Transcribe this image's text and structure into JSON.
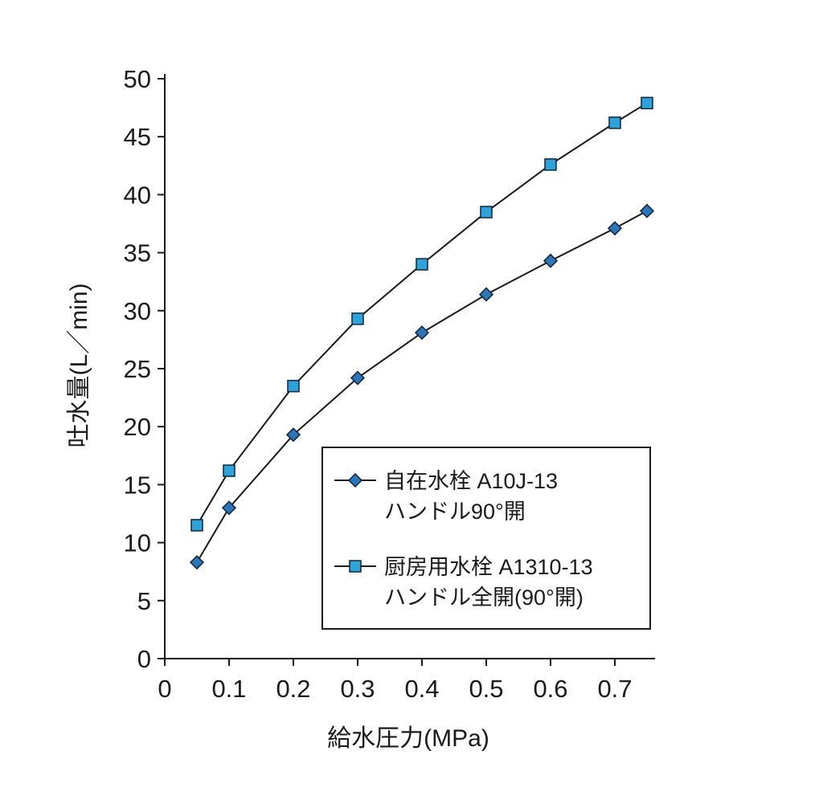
{
  "chart_data": {
    "type": "line",
    "title": "",
    "xlabel": "給水圧力(MPa)",
    "ylabel": "吐水量(L／min)",
    "xlim": [
      0,
      0.7625
    ],
    "ylim": [
      0,
      50
    ],
    "x_ticks": [
      0,
      0.1,
      0.2,
      0.3,
      0.4,
      0.5,
      0.6,
      0.7
    ],
    "x_tick_labels": [
      "0",
      "0.1",
      "0.2",
      "0.3",
      "0.4",
      "0.5",
      "0.6",
      "0.7"
    ],
    "y_ticks": [
      0,
      5,
      10,
      15,
      20,
      25,
      30,
      35,
      40,
      45,
      50
    ],
    "y_tick_labels": [
      "0",
      "5",
      "10",
      "15",
      "20",
      "25",
      "30",
      "35",
      "40",
      "45",
      "50"
    ],
    "grid": false,
    "legend_position": "lower-right-inside",
    "axis_color": "#1a1a1a",
    "series": [
      {
        "name": "自在水栓 A10J-13",
        "name_line2": "ハンドル90°開",
        "marker": "diamond",
        "color": "#2e75b6",
        "line_color": "#1a1a1a",
        "x": [
          0.05,
          0.1,
          0.2,
          0.3,
          0.4,
          0.5,
          0.6,
          0.7,
          0.75
        ],
        "values": [
          8.3,
          13.0,
          19.3,
          24.2,
          28.1,
          31.4,
          34.3,
          37.1,
          38.6
        ]
      },
      {
        "name": "厨房用水栓 A1310-13",
        "name_line2": "ハンドル全開(90°開)",
        "marker": "square",
        "color": "#31a2d8",
        "line_color": "#1a1a1a",
        "x": [
          0.05,
          0.1,
          0.2,
          0.3,
          0.4,
          0.5,
          0.6,
          0.7,
          0.75
        ],
        "values": [
          11.5,
          16.2,
          23.5,
          29.3,
          34.0,
          38.5,
          42.6,
          46.2,
          47.9
        ]
      }
    ]
  }
}
